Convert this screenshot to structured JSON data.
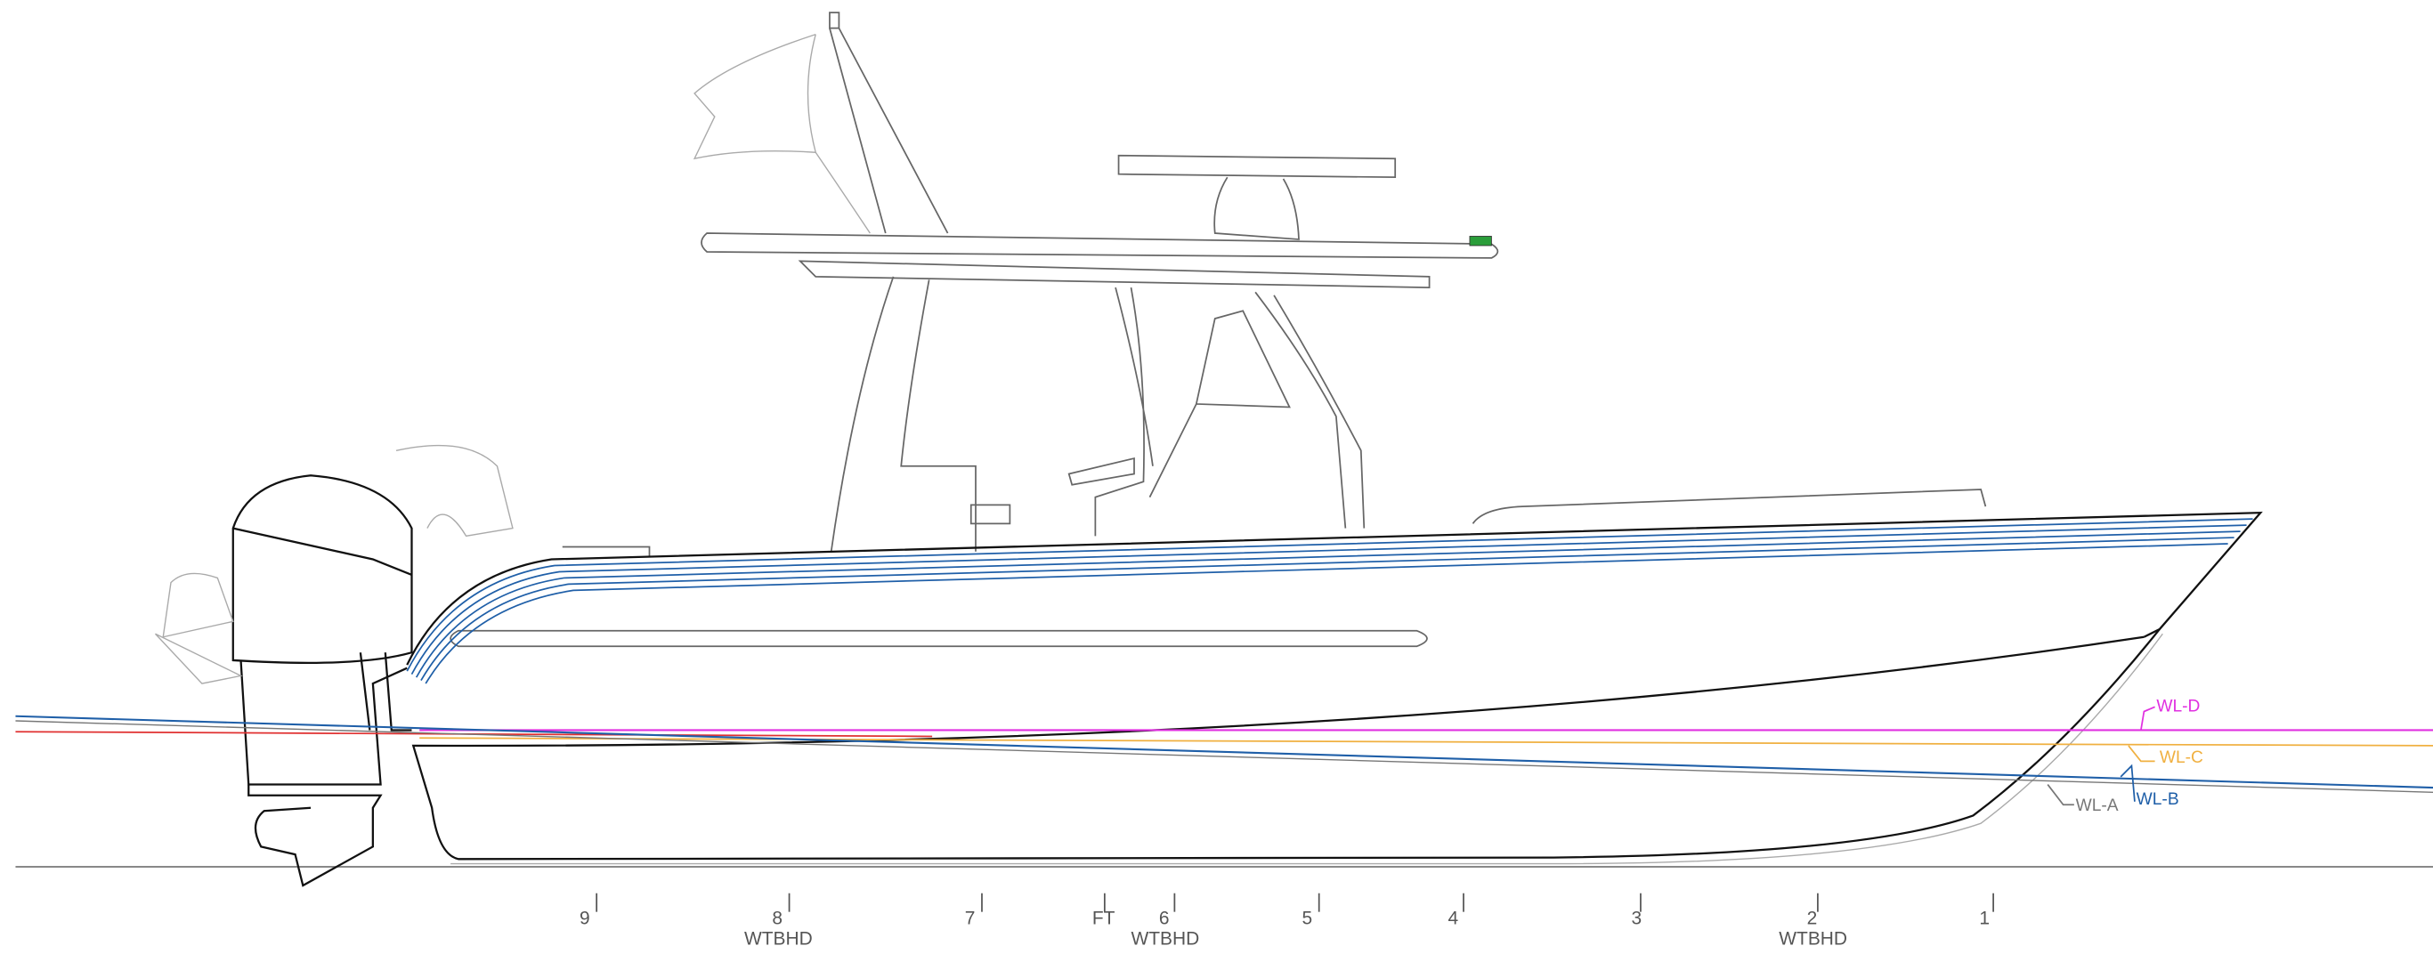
{
  "waterlines": [
    {
      "label": "WL-D"
    },
    {
      "label": "WL-C"
    },
    {
      "label": "WL-B"
    },
    {
      "label": "WL-A"
    }
  ],
  "stations": [
    {
      "label": "9"
    },
    {
      "label": "8",
      "note": "WTBHD"
    },
    {
      "label": "7"
    },
    {
      "label": "FT"
    },
    {
      "label": "6",
      "note": "WTBHD"
    },
    {
      "label": "5"
    },
    {
      "label": "4"
    },
    {
      "label": "3"
    },
    {
      "label": "2",
      "note": "WTBHD"
    },
    {
      "label": "1"
    }
  ]
}
